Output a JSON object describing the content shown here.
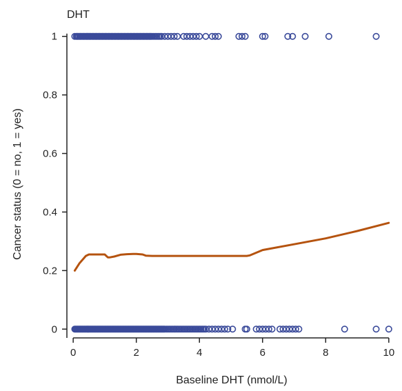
{
  "chart_data": {
    "type": "scatter",
    "title": "DHT",
    "xlabel": "Baseline DHT (nmol/L)",
    "ylabel": "Cancer status (0 = no, 1 = yes)",
    "xlim": [
      -0.2,
      10.2
    ],
    "ylim": [
      -0.03,
      1.03
    ],
    "x_ticks": [
      0,
      2,
      4,
      6,
      8,
      10
    ],
    "x_tick_labels": [
      "0",
      "2",
      "4",
      "6",
      "8",
      "10"
    ],
    "y_ticks": [
      0,
      0.2,
      0.4,
      0.6,
      0.8,
      1
    ],
    "y_tick_labels": [
      "0",
      "0.2",
      "0.4",
      "0.6",
      "0.8",
      "1"
    ],
    "grid": false,
    "colors": {
      "points": "#3a4a9a",
      "smooth": "#b5530f",
      "axis": "#222222"
    },
    "series": [
      {
        "kind": "points",
        "y": 1,
        "x": [
          0.05,
          0.1,
          0.13,
          0.16,
          0.2,
          0.23,
          0.26,
          0.3,
          0.33,
          0.36,
          0.4,
          0.43,
          0.46,
          0.5,
          0.53,
          0.56,
          0.6,
          0.63,
          0.66,
          0.7,
          0.73,
          0.76,
          0.8,
          0.83,
          0.86,
          0.9,
          0.93,
          0.96,
          1.0,
          1.03,
          1.06,
          1.1,
          1.13,
          1.16,
          1.2,
          1.23,
          1.26,
          1.3,
          1.33,
          1.36,
          1.4,
          1.43,
          1.46,
          1.5,
          1.53,
          1.56,
          1.6,
          1.63,
          1.66,
          1.7,
          1.73,
          1.76,
          1.8,
          1.83,
          1.86,
          1.9,
          1.93,
          1.96,
          2.0,
          2.03,
          2.06,
          2.1,
          2.13,
          2.16,
          2.2,
          2.23,
          2.26,
          2.3,
          2.33,
          2.36,
          2.4,
          2.43,
          2.46,
          2.5,
          2.55,
          2.6,
          2.65,
          2.7,
          2.75,
          2.8,
          2.9,
          3.0,
          3.1,
          3.2,
          3.3,
          3.5,
          3.6,
          3.7,
          3.8,
          3.9,
          4.0,
          4.2,
          4.4,
          4.5,
          4.6,
          5.25,
          5.35,
          5.45,
          6.0,
          6.08,
          6.8,
          6.95,
          7.35,
          8.1,
          9.6
        ]
      },
      {
        "kind": "points",
        "y": 0,
        "x": [
          0.05,
          0.08,
          0.11,
          0.14,
          0.17,
          0.2,
          0.23,
          0.26,
          0.29,
          0.32,
          0.35,
          0.38,
          0.41,
          0.44,
          0.47,
          0.5,
          0.53,
          0.56,
          0.59,
          0.62,
          0.65,
          0.68,
          0.71,
          0.74,
          0.77,
          0.8,
          0.83,
          0.86,
          0.89,
          0.92,
          0.95,
          0.98,
          1.01,
          1.04,
          1.07,
          1.1,
          1.13,
          1.16,
          1.19,
          1.22,
          1.25,
          1.28,
          1.31,
          1.34,
          1.37,
          1.4,
          1.43,
          1.46,
          1.49,
          1.52,
          1.55,
          1.58,
          1.61,
          1.64,
          1.67,
          1.7,
          1.73,
          1.76,
          1.79,
          1.82,
          1.85,
          1.88,
          1.91,
          1.94,
          1.97,
          2.0,
          2.03,
          2.06,
          2.09,
          2.12,
          2.15,
          2.18,
          2.21,
          2.24,
          2.27,
          2.3,
          2.33,
          2.36,
          2.39,
          2.42,
          2.45,
          2.48,
          2.51,
          2.54,
          2.57,
          2.6,
          2.63,
          2.66,
          2.69,
          2.72,
          2.75,
          2.78,
          2.81,
          2.84,
          2.87,
          2.9,
          2.95,
          3.0,
          3.05,
          3.1,
          3.15,
          3.2,
          3.25,
          3.3,
          3.35,
          3.4,
          3.45,
          3.5,
          3.55,
          3.6,
          3.65,
          3.7,
          3.75,
          3.8,
          3.85,
          3.9,
          3.95,
          4.0,
          4.05,
          4.1,
          4.15,
          4.2,
          4.3,
          4.4,
          4.5,
          4.6,
          4.7,
          4.8,
          4.9,
          5.05,
          5.45,
          5.5,
          5.8,
          5.9,
          6.0,
          6.1,
          6.2,
          6.3,
          6.55,
          6.65,
          6.75,
          6.85,
          6.95,
          7.05,
          7.15,
          8.6,
          9.6,
          10.0
        ]
      },
      {
        "kind": "smooth",
        "x": [
          0.05,
          0.2,
          0.4,
          0.5,
          0.7,
          1.0,
          1.1,
          1.15,
          1.3,
          1.5,
          1.7,
          1.9,
          2.0,
          2.2,
          2.3,
          2.5,
          3.0,
          4.0,
          5.0,
          5.5,
          5.6,
          6.0,
          7.0,
          8.0,
          9.0,
          10.0
        ],
        "y": [
          0.2,
          0.225,
          0.25,
          0.255,
          0.255,
          0.255,
          0.245,
          0.245,
          0.248,
          0.254,
          0.256,
          0.257,
          0.257,
          0.255,
          0.251,
          0.25,
          0.25,
          0.25,
          0.25,
          0.25,
          0.252,
          0.27,
          0.29,
          0.31,
          0.335,
          0.363
        ]
      }
    ]
  }
}
